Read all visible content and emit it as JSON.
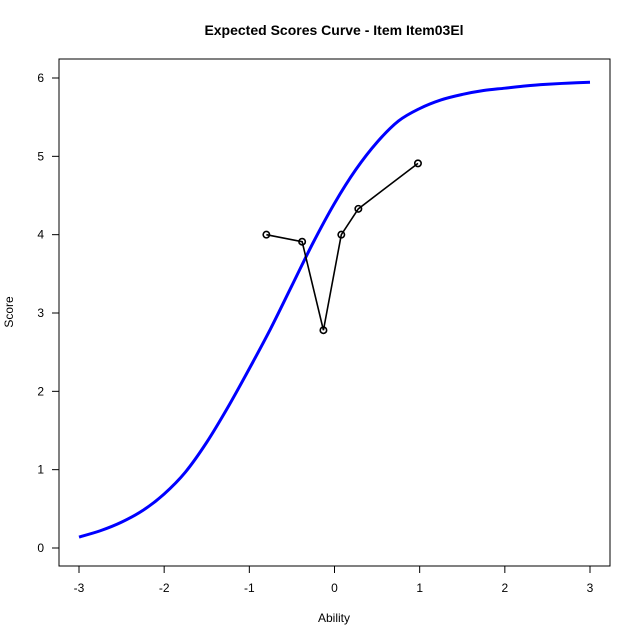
{
  "chart_data": {
    "type": "line",
    "title": "Expected Scores Curve - Item  Item03El",
    "xlabel": "Ability",
    "ylabel": "Score",
    "xlim": [
      -3,
      3
    ],
    "ylim": [
      0,
      6
    ],
    "x_ticks": [
      -3,
      -2,
      -1,
      0,
      1,
      2,
      3
    ],
    "y_ticks": [
      0,
      1,
      2,
      3,
      4,
      5,
      6
    ],
    "grid": false,
    "legend": "none",
    "series": [
      {
        "kind": "expected-curve",
        "color": "#0000ff",
        "x": [
          -3.0,
          -2.75,
          -2.5,
          -2.25,
          -2.0,
          -1.75,
          -1.5,
          -1.25,
          -1.0,
          -0.75,
          -0.5,
          -0.25,
          0.0,
          0.25,
          0.5,
          0.75,
          1.0,
          1.25,
          1.5,
          1.75,
          2.0,
          2.25,
          2.5,
          2.75,
          3.0
        ],
        "y": [
          0.14,
          0.22,
          0.33,
          0.48,
          0.69,
          0.97,
          1.35,
          1.8,
          2.29,
          2.8,
          3.35,
          3.9,
          4.4,
          4.83,
          5.18,
          5.45,
          5.61,
          5.72,
          5.79,
          5.84,
          5.87,
          5.9,
          5.92,
          5.935,
          5.945
        ]
      },
      {
        "kind": "observed",
        "color": "#000000",
        "x": [
          -0.8,
          -0.38,
          -0.13,
          0.08,
          0.28,
          0.98
        ],
        "y": [
          4.0,
          3.91,
          2.78,
          4.0,
          4.33,
          4.91
        ]
      }
    ]
  }
}
